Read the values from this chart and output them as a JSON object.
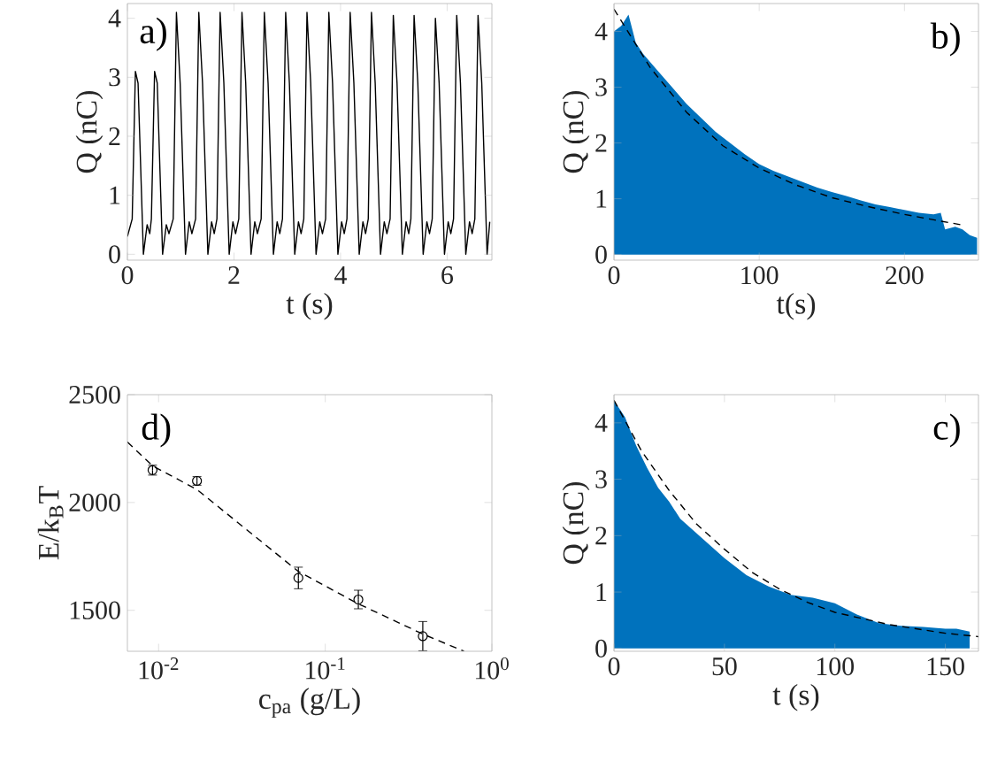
{
  "chart_data": [
    {
      "type": "line",
      "xlabel": "t (s)",
      "ylabel": "Q (nC)",
      "annotations": [
        "a)"
      ],
      "color": "#000000",
      "x": [
        0,
        0.09,
        0.15,
        0.2,
        0.3,
        0.37,
        0.42,
        0.45,
        0.51,
        0.56,
        0.66,
        0.73,
        0.78,
        0.86,
        0.92,
        0.99,
        1.09,
        1.16,
        1.21,
        1.28,
        1.34,
        1.41,
        1.51,
        1.58,
        1.63,
        1.68,
        1.74,
        1.81,
        1.91,
        1.98,
        2.03,
        2.09,
        2.15,
        2.22,
        2.32,
        2.39,
        2.44,
        2.51,
        2.57,
        2.64,
        2.74,
        2.81,
        2.86,
        2.91,
        2.97,
        3.04,
        3.14,
        3.21,
        3.26,
        3.31,
        3.37,
        3.44,
        3.54,
        3.61,
        3.66,
        3.72,
        3.78,
        3.85,
        3.95,
        4.02,
        4.07,
        4.12,
        4.18,
        4.25,
        4.35,
        4.42,
        4.47,
        4.52,
        4.58,
        4.65,
        4.75,
        4.82,
        4.87,
        4.93,
        4.99,
        5.06,
        5.16,
        5.23,
        5.28,
        5.32,
        5.38,
        5.45,
        5.55,
        5.62,
        5.67,
        5.72,
        5.78,
        5.85,
        5.95,
        6.02,
        6.07,
        6.12,
        6.18,
        6.25,
        6.35,
        6.42,
        6.47,
        6.52,
        6.58,
        6.65,
        6.75,
        6.8
      ],
      "values": [
        0.3,
        0.6,
        3.1,
        2.9,
        0,
        0.5,
        0.35,
        0.6,
        3.1,
        2.9,
        0,
        0.5,
        0.35,
        0.6,
        4.1,
        2.9,
        0,
        0.55,
        0.35,
        0.6,
        4.1,
        2.9,
        0,
        0.55,
        0.35,
        0.6,
        4.1,
        2.9,
        0,
        0.55,
        0.35,
        0.6,
        4.1,
        2.9,
        0,
        0.55,
        0.35,
        0.6,
        4.1,
        2.9,
        0,
        0.55,
        0.35,
        0.6,
        4.1,
        2.9,
        0,
        0.55,
        0.35,
        0.6,
        4.1,
        2.9,
        0,
        0.55,
        0.35,
        0.6,
        4.1,
        2.9,
        0,
        0.55,
        0.35,
        0.6,
        4.1,
        2.9,
        0,
        0.55,
        0.35,
        0.6,
        4.1,
        2.9,
        0,
        0.55,
        0.35,
        0.6,
        4.05,
        2.9,
        0,
        0.55,
        0.35,
        0.6,
        4.05,
        2.9,
        0,
        0.55,
        0.35,
        0.6,
        4.0,
        2.9,
        0,
        0.55,
        0.35,
        0.6,
        4.05,
        2.9,
        0,
        0.55,
        0.35,
        0.6,
        4.05,
        2.9,
        0,
        0.55
      ],
      "xlim": [
        0,
        6.84
      ],
      "ylim": [
        -0.1,
        4.25
      ],
      "xticks": [
        0,
        2,
        4,
        6
      ],
      "yticks": [
        0,
        1,
        2,
        3,
        4
      ]
    },
    {
      "type": "area",
      "xlabel": "t(s)",
      "ylabel": "Q (nC)",
      "annotations": [
        "b)"
      ],
      "series": [
        {
          "type": "area",
          "color": "#0072bd",
          "x": [
            0,
            5,
            10,
            15,
            20,
            30,
            40,
            50,
            60,
            70,
            80,
            90,
            100,
            110,
            120,
            130,
            140,
            150,
            160,
            170,
            180,
            190,
            200,
            210,
            220,
            225,
            228,
            235,
            240,
            245,
            250
          ],
          "values": [
            4.0,
            4.1,
            4.3,
            3.8,
            3.6,
            3.3,
            3.0,
            2.7,
            2.45,
            2.2,
            2.0,
            1.8,
            1.62,
            1.5,
            1.4,
            1.3,
            1.2,
            1.12,
            1.05,
            0.97,
            0.9,
            0.85,
            0.8,
            0.75,
            0.72,
            0.75,
            0.45,
            0.5,
            0.45,
            0.35,
            0.3
          ]
        },
        {
          "type": "line",
          "color": "#000000",
          "line_style": "dashed",
          "x": [
            0,
            25,
            50,
            75,
            100,
            125,
            150,
            175,
            200,
            225,
            240
          ],
          "values": [
            4.4,
            3.35,
            2.55,
            1.95,
            1.55,
            1.25,
            1.02,
            0.86,
            0.72,
            0.6,
            0.53
          ]
        }
      ],
      "xlim": [
        0,
        251
      ],
      "ylim": [
        -0.1,
        4.5
      ],
      "xticks": [
        0,
        100,
        200
      ],
      "yticks": [
        0,
        1,
        2,
        3,
        4
      ]
    },
    {
      "type": "scatter",
      "log": "x",
      "xlabel": "c$_{pa}$ (g/L)",
      "ylabel": "E/k$_{B}$T",
      "annotations": [
        "d)"
      ],
      "series": [
        {
          "type": "scatter",
          "marker": "circle",
          "color": "#000000",
          "x": [
            0.0092,
            0.017,
            0.069,
            0.158,
            0.385
          ],
          "values": [
            2150,
            2100,
            1650,
            1550,
            1380
          ],
          "errors": [
            23,
            20,
            50,
            43,
            68
          ]
        },
        {
          "type": "line",
          "color": "#000000",
          "line_style": "dashed",
          "x": [
            0.0065,
            0.0092,
            0.017,
            0.069,
            0.158,
            0.385,
            0.68
          ],
          "values": [
            2280,
            2170,
            2060,
            1680,
            1530,
            1390,
            1310
          ]
        }
      ],
      "xlim": [
        0.0065,
        1
      ],
      "ylim": [
        1310,
        2500
      ],
      "xticks": [
        {
          "value": 0.01,
          "label": "10$^{-2}$"
        },
        {
          "value": 0.1,
          "label": "10$^{-1}$"
        },
        {
          "value": 1,
          "label": "10$^{0}$"
        }
      ],
      "yticks": [
        1500,
        2000,
        2500
      ]
    },
    {
      "type": "area",
      "xlabel": "t (s)",
      "ylabel": "Q (nC)",
      "annotations": [
        "c)"
      ],
      "series": [
        {
          "type": "area",
          "color": "#0072bd",
          "x": [
            0,
            5,
            10,
            15,
            20,
            25,
            30,
            40,
            50,
            60,
            70,
            80,
            90,
            100,
            110,
            120,
            130,
            140,
            150,
            155,
            161
          ],
          "values": [
            4.4,
            4.1,
            3.6,
            3.2,
            2.85,
            2.6,
            2.3,
            1.95,
            1.6,
            1.3,
            1.1,
            0.95,
            0.9,
            0.8,
            0.6,
            0.45,
            0.4,
            0.38,
            0.35,
            0.35,
            0.3
          ]
        },
        {
          "type": "line",
          "color": "#000000",
          "line_style": "dashed",
          "x": [
            0,
            12.5,
            25,
            37.5,
            50,
            62.5,
            75,
            87.5,
            100,
            125,
            150,
            165
          ],
          "values": [
            4.4,
            3.5,
            2.8,
            2.2,
            1.76,
            1.35,
            1.05,
            0.82,
            0.64,
            0.42,
            0.27,
            0.21
          ]
        }
      ],
      "xlim": [
        0,
        165
      ],
      "ylim": [
        -0.05,
        4.5
      ],
      "xticks": [
        0,
        50,
        100,
        150
      ],
      "yticks": [
        0,
        1,
        2,
        3,
        4
      ]
    }
  ]
}
